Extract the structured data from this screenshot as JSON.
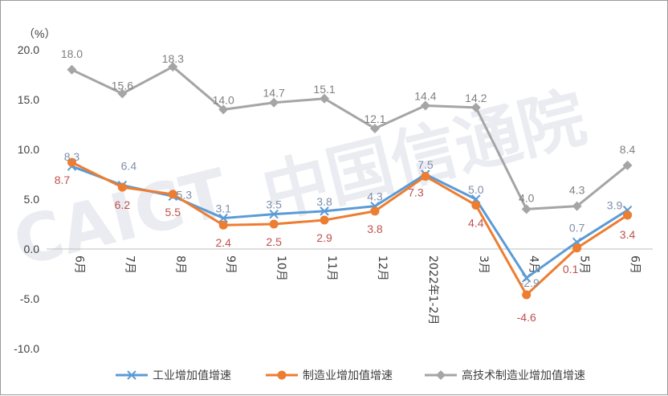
{
  "chart_data": {
    "type": "line",
    "unit_label": "（%）",
    "ylim": [
      -10.0,
      20.0
    ],
    "yticks": [
      "20.0",
      "15.0",
      "10.0",
      "5.0",
      "0.0",
      "-5.0",
      "-10.0"
    ],
    "categories": [
      "6月",
      "7月",
      "8月",
      "9月",
      "10月",
      "11月",
      "12月",
      "2022年1-2月",
      "3月",
      "4月",
      "5月",
      "6月"
    ],
    "series": [
      {
        "name": "工业增加值增速",
        "color": "#5b9bd5",
        "marker": "x",
        "values": [
          8.3,
          6.4,
          5.3,
          3.1,
          3.5,
          3.8,
          4.3,
          7.5,
          5.0,
          -2.9,
          0.7,
          3.9
        ],
        "labels": [
          "8.3",
          "6.4",
          "5.3",
          "3.1",
          "3.5",
          "3.8",
          "4.3",
          "7.5",
          "5.0",
          "-2.9",
          "0.7",
          "3.9"
        ],
        "label_color": "#7f8fa9"
      },
      {
        "name": "制造业增加值增速",
        "color": "#ed7d31",
        "marker": "circle",
        "values": [
          8.7,
          6.2,
          5.5,
          2.4,
          2.5,
          2.9,
          3.8,
          7.3,
          4.4,
          -4.6,
          0.1,
          3.4
        ],
        "labels": [
          "8.7",
          "6.2",
          "5.5",
          "2.4",
          "2.5",
          "2.9",
          "3.8",
          "7.3",
          "4.4",
          "-4.6",
          "0.1",
          "3.4"
        ],
        "label_color": "#c0504d"
      },
      {
        "name": "高技术制造业增加值增速",
        "color": "#a5a5a5",
        "marker": "diamond",
        "values": [
          18.0,
          15.6,
          18.3,
          14.0,
          14.7,
          15.1,
          12.1,
          14.4,
          14.2,
          4.0,
          4.3,
          8.4
        ],
        "labels": [
          "18.0",
          "15.6",
          "18.3",
          "14.0",
          "14.7",
          "15.1",
          "12.1",
          "14.4",
          "14.2",
          "4.0",
          "4.3",
          "8.4"
        ],
        "label_color": "#808080"
      }
    ],
    "legend_position": "bottom-right",
    "grid": false
  },
  "watermark": {
    "text_latin": "CAICT",
    "text_cn": "中国信通院"
  }
}
